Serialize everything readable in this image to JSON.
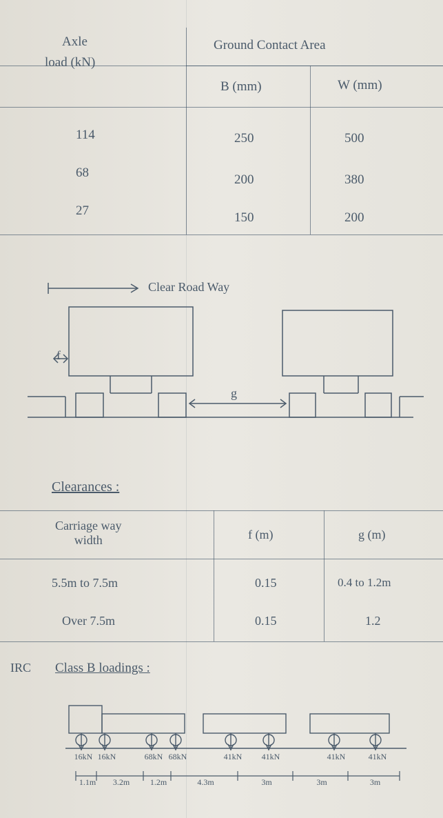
{
  "table1": {
    "header_left": "Axle",
    "header_left2": "load (kN)",
    "header_right": "Ground Contact Area",
    "sub_b": "B (mm)",
    "sub_w": "W (mm)",
    "rows": [
      {
        "axle": "114",
        "b": "250",
        "w": "500"
      },
      {
        "axle": "68",
        "b": "200",
        "w": "380"
      },
      {
        "axle": "27",
        "b": "150",
        "w": "200"
      }
    ],
    "colors": {
      "line": "#4a5a6a",
      "text": "#4a5a6a"
    }
  },
  "diagram1": {
    "arrow_label": "Clear Road Way",
    "f_label": "f",
    "g_label": "g"
  },
  "clearances_heading": "Clearances :",
  "table2": {
    "col1": "Carriage way\nwidth",
    "col2": "f (m)",
    "col3": "g (m)",
    "rows": [
      {
        "w": "5.5m  to  7.5m",
        "f": "0.15",
        "g": "0.4  to  1.2m"
      },
      {
        "w": "Over  7.5m",
        "f": "0.15",
        "g": "1.2"
      }
    ]
  },
  "irc_heading_prefix": "IRC",
  "irc_heading": "Class  B   loadings :",
  "truck": {
    "axle_loads": [
      "16kN",
      "16kN",
      "68kN",
      "68kN",
      "41kN",
      "41kN",
      "41kN",
      "41kN"
    ],
    "spacing": [
      "1.1m",
      "3.2m",
      "1.2m",
      "4.3m",
      "3m",
      "3m",
      "3m"
    ]
  },
  "style": {
    "bg": "#e8e6e0",
    "ink": "#4a5a6a",
    "line_width": 1
  }
}
